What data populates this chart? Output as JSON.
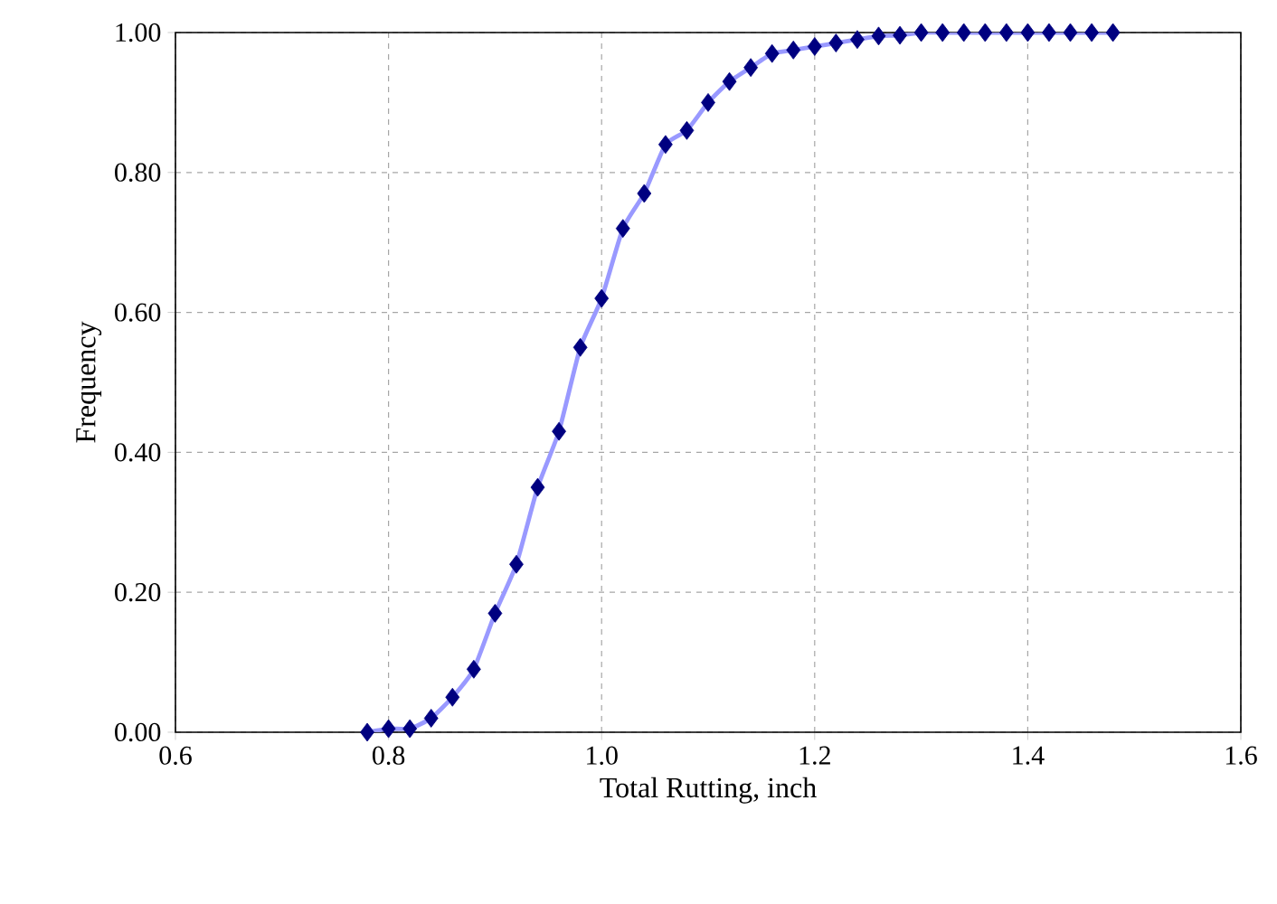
{
  "chart_data": {
    "type": "line",
    "xlabel": "Total Rutting, inch",
    "ylabel": "Frequency",
    "x": [
      0.78,
      0.8,
      0.82,
      0.84,
      0.86,
      0.88,
      0.9,
      0.92,
      0.94,
      0.96,
      0.98,
      1.0,
      1.02,
      1.04,
      1.06,
      1.08,
      1.1,
      1.12,
      1.14,
      1.16,
      1.18,
      1.2,
      1.22,
      1.24,
      1.26,
      1.28,
      1.3,
      1.32,
      1.34,
      1.36,
      1.38,
      1.4,
      1.42,
      1.44,
      1.46,
      1.48
    ],
    "series": [
      {
        "color": "#9999ff",
        "marker": "none",
        "values": [
          0,
          0.005,
          0.005,
          0.02,
          0.05,
          0.09,
          0.17,
          0.24,
          0.35,
          0.43,
          0.55,
          0.62,
          0.72,
          0.77,
          0.84,
          0.86,
          0.9,
          0.93,
          0.95,
          0.97,
          0.975,
          0.98,
          0.985,
          0.99,
          0.995,
          0.996,
          1,
          1,
          1,
          1,
          1,
          1,
          1,
          1,
          1,
          1
        ]
      },
      {
        "type": "scatter",
        "color": "#000080",
        "marker": "diamond",
        "values": [
          0,
          0.005,
          0.005,
          0.02,
          0.05,
          0.09,
          0.17,
          0.24,
          0.35,
          0.43,
          0.55,
          0.62,
          0.72,
          0.77,
          0.84,
          0.86,
          0.9,
          0.93,
          0.95,
          0.97,
          0.975,
          0.98,
          0.985,
          0.99,
          0.995,
          0.996,
          1,
          1,
          1,
          1,
          1,
          1,
          1,
          1,
          1,
          1
        ]
      }
    ],
    "xlim": [
      0.6,
      1.6
    ],
    "xticks": [
      {
        "value": 0.6,
        "label": "0.6"
      },
      {
        "value": 0.8,
        "label": "0.8"
      },
      {
        "value": 1.0,
        "label": "1.0"
      },
      {
        "value": 1.2,
        "label": "1.2"
      },
      {
        "value": 1.4,
        "label": "1.4"
      },
      {
        "value": 1.6,
        "label": "1.6"
      }
    ],
    "ylim": [
      0,
      1
    ],
    "yticks": [
      {
        "value": 0,
        "label": "0.00"
      },
      {
        "value": 0.2,
        "label": "0.20"
      },
      {
        "value": 0.4,
        "label": "0.40"
      },
      {
        "value": 0.6,
        "label": "0.60"
      },
      {
        "value": 0.8,
        "label": "0.80"
      },
      {
        "value": 1,
        "label": "1.00"
      }
    ],
    "grid": true
  }
}
